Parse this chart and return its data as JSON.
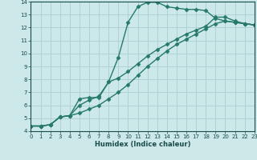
{
  "xlabel": "Humidex (Indice chaleur)",
  "bg_color": "#cce8e8",
  "grid_color": "#aad0d0",
  "line_color": "#267a6a",
  "xlim": [
    0,
    23
  ],
  "ylim": [
    4,
    14
  ],
  "xticks": [
    0,
    1,
    2,
    3,
    4,
    5,
    6,
    7,
    8,
    9,
    10,
    11,
    12,
    13,
    14,
    15,
    16,
    17,
    18,
    19,
    20,
    21,
    22,
    23
  ],
  "yticks": [
    4,
    5,
    6,
    7,
    8,
    9,
    10,
    11,
    12,
    13,
    14
  ],
  "line1_x": [
    0,
    1,
    2,
    3,
    4,
    5,
    6,
    7,
    8,
    9,
    10,
    11,
    12,
    13,
    14,
    15,
    16,
    17,
    18,
    19,
    20,
    21,
    22,
    23
  ],
  "line1_y": [
    4.4,
    4.4,
    4.5,
    5.1,
    5.2,
    6.5,
    6.6,
    6.6,
    7.8,
    9.7,
    12.4,
    13.6,
    13.95,
    13.95,
    13.6,
    13.5,
    13.4,
    13.4,
    13.3,
    12.7,
    12.5,
    12.4,
    12.3,
    12.2
  ],
  "line2_x": [
    0,
    1,
    2,
    3,
    4,
    5,
    6,
    7,
    8,
    9,
    10,
    11,
    12,
    13,
    14,
    15,
    16,
    17,
    18,
    19,
    20,
    21,
    22,
    23
  ],
  "line2_y": [
    4.4,
    4.4,
    4.5,
    5.1,
    5.2,
    6.0,
    6.4,
    6.7,
    7.8,
    8.1,
    8.6,
    9.2,
    9.8,
    10.3,
    10.7,
    11.1,
    11.5,
    11.8,
    12.1,
    12.8,
    12.8,
    12.5,
    12.3,
    12.2
  ],
  "line3_x": [
    0,
    1,
    2,
    3,
    4,
    5,
    6,
    7,
    8,
    9,
    10,
    11,
    12,
    13,
    14,
    15,
    16,
    17,
    18,
    19,
    20,
    21,
    22,
    23
  ],
  "line3_y": [
    4.4,
    4.4,
    4.5,
    5.1,
    5.2,
    5.4,
    5.7,
    6.0,
    6.5,
    7.0,
    7.6,
    8.3,
    9.0,
    9.6,
    10.2,
    10.7,
    11.1,
    11.5,
    11.9,
    12.3,
    12.5,
    12.4,
    12.3,
    12.2
  ],
  "marker": "D",
  "markersize": 2.5,
  "linewidth": 1.0
}
